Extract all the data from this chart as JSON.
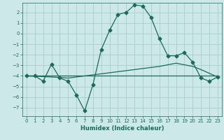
{
  "title": "",
  "xlabel": "Humidex (Indice chaleur)",
  "bg_color": "#cce8e8",
  "grid_color": "#aacccc",
  "line_color": "#1a6b5a",
  "xlim": [
    -0.5,
    23.5
  ],
  "ylim": [
    -7.8,
    2.9
  ],
  "yticks": [
    2,
    1,
    0,
    -1,
    -2,
    -3,
    -4,
    -5,
    -6,
    -7
  ],
  "xticks": [
    0,
    1,
    2,
    3,
    4,
    5,
    6,
    7,
    8,
    9,
    10,
    11,
    12,
    13,
    14,
    15,
    16,
    17,
    18,
    19,
    20,
    21,
    22,
    23
  ],
  "series1_x": [
    0,
    1,
    2,
    3,
    4,
    5,
    6,
    7,
    8,
    9,
    10,
    11,
    12,
    13,
    14,
    15,
    16,
    17,
    18,
    19,
    20,
    21,
    22,
    23
  ],
  "series1_y": [
    -4.0,
    -4.0,
    -4.5,
    -2.9,
    -4.2,
    -4.5,
    -5.8,
    -7.3,
    -4.8,
    -1.5,
    0.3,
    1.8,
    2.0,
    2.7,
    2.6,
    1.5,
    -0.5,
    -2.1,
    -2.1,
    -1.8,
    -2.7,
    -4.2,
    -4.5,
    -4.1
  ],
  "series2_x": [
    0,
    23
  ],
  "series2_y": [
    -4.0,
    -4.0
  ],
  "series3_x": [
    0,
    3,
    5,
    8,
    10,
    13,
    16,
    18,
    20,
    21,
    23
  ],
  "series3_y": [
    -4.0,
    -4.1,
    -4.2,
    -3.9,
    -3.7,
    -3.4,
    -3.1,
    -2.8,
    -3.1,
    -3.4,
    -4.1
  ],
  "marker": "D",
  "marker_size": 2.5,
  "linewidth": 0.9
}
